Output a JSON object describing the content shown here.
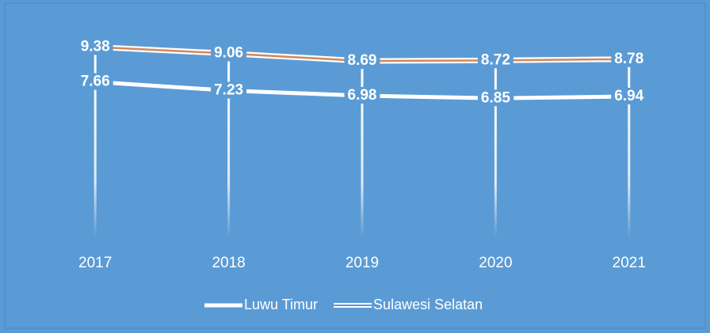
{
  "chart_data": {
    "type": "line",
    "categories": [
      "2017",
      "2018",
      "2019",
      "2020",
      "2021"
    ],
    "series": [
      {
        "name": "Luwu Timur",
        "color": "#ffffff",
        "line_style": "solid",
        "values": [
          7.66,
          7.23,
          6.98,
          6.85,
          6.94
        ]
      },
      {
        "name": "Sulawesi Selatan",
        "color": "#ffffff",
        "line_style": "double",
        "values": [
          9.38,
          9.06,
          8.69,
          8.72,
          8.78
        ]
      }
    ],
    "ylim": [
      0,
      11.5
    ],
    "background": "#5b9bd5",
    "drop_lines": true,
    "legend": "bottom"
  }
}
